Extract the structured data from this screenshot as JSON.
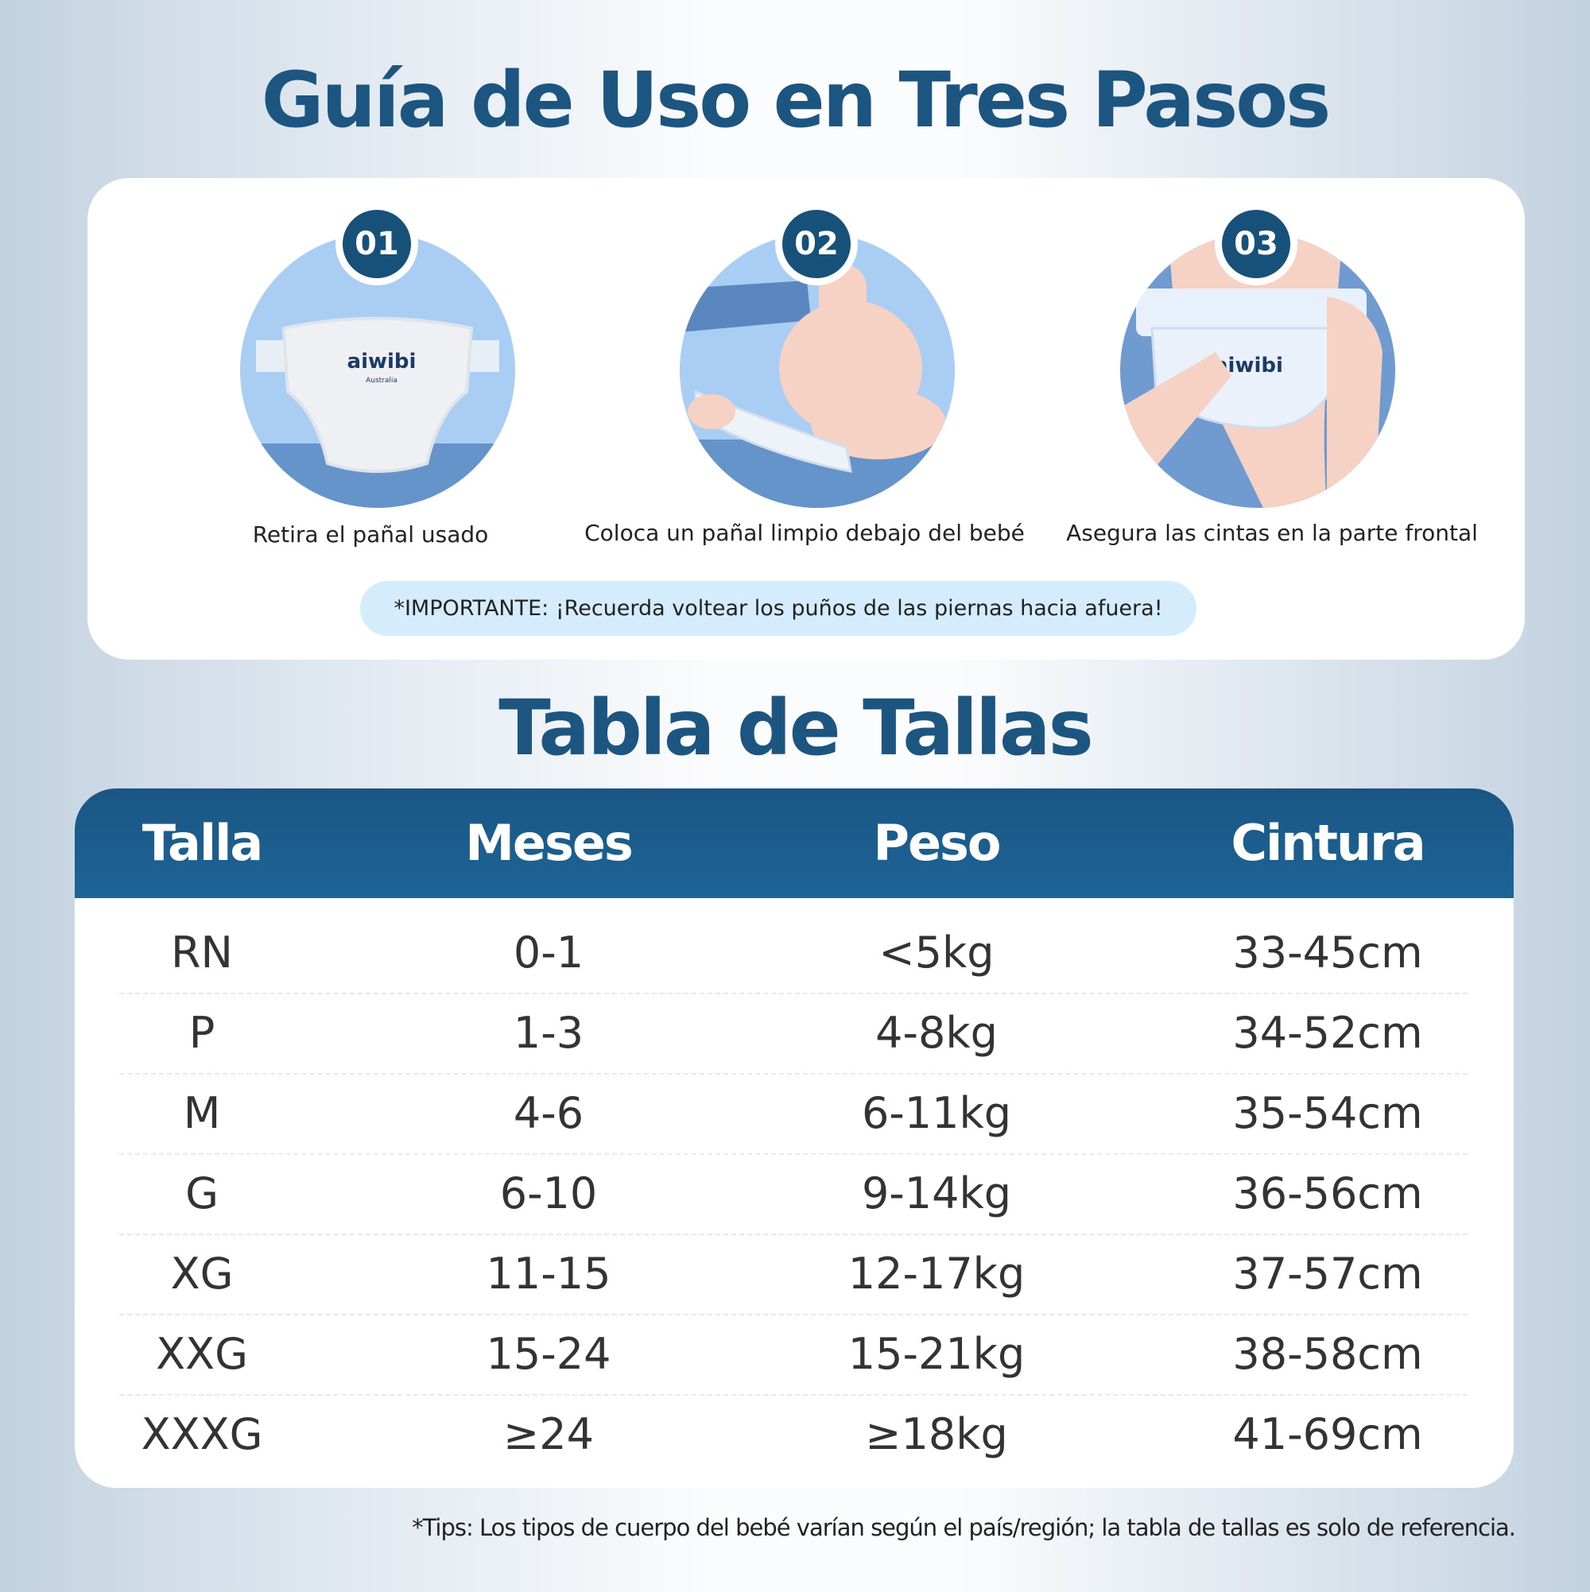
{
  "guide": {
    "title": "Guía de Uso en Tres Pasos",
    "steps": [
      {
        "number": "01",
        "caption": "Retira el pañal usado",
        "brand": "aiwibi",
        "brand_sub": "Australia"
      },
      {
        "number": "02",
        "caption": "Coloca un pañal limpio debajo del bebé"
      },
      {
        "number": "03",
        "caption": "Asegura las cintas en la parte frontal",
        "brand": "aiwibi"
      }
    ],
    "important": "*IMPORTANTE: ¡Recuerda voltear los puños de las piernas hacia afuera!"
  },
  "size_table": {
    "title": "Tabla de Tallas",
    "headers": [
      "Talla",
      "Meses",
      "Peso",
      "Cintura"
    ],
    "rows": [
      [
        "RN",
        "0-1",
        "<5kg",
        "33-45cm"
      ],
      [
        "P",
        "1-3",
        "4-8kg",
        "34-52cm"
      ],
      [
        "M",
        "4-6",
        "6-11kg",
        "35-54cm"
      ],
      [
        "G",
        "6-10",
        "9-14kg",
        "36-56cm"
      ],
      [
        "XG",
        "11-15",
        "12-17kg",
        "37-57cm"
      ],
      [
        "XXG",
        "15-24",
        "15-21kg",
        "38-58cm"
      ],
      [
        "XXXG",
        "≥24",
        "≥18kg",
        "41-69cm"
      ]
    ]
  },
  "tips": "*Tips: Los tipos de cuerpo del bebé varían según el país/región; la tabla de tallas es solo de referencia.",
  "colors": {
    "brand_dark": "#1b5580",
    "header": "#1a5684",
    "pill": "#d4ecfb",
    "circle_light": "#a9cdf3",
    "circle_dark": "#6594cb"
  }
}
